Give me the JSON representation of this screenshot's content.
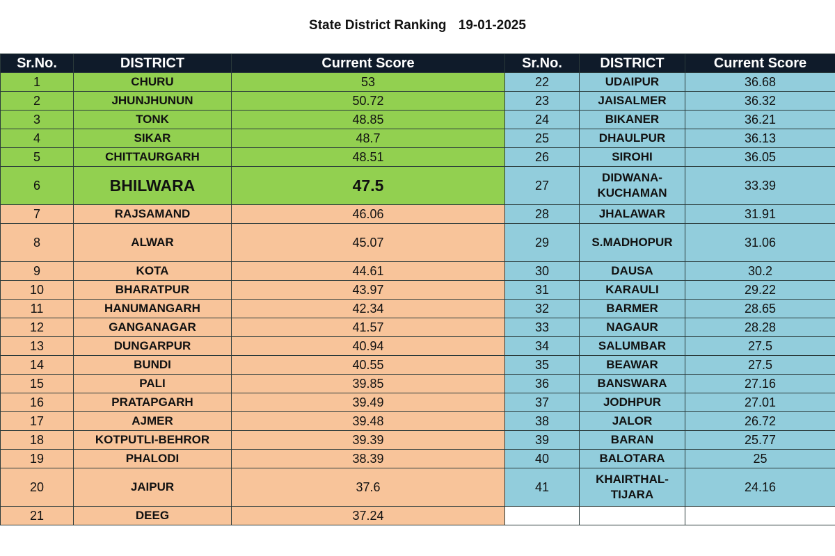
{
  "title": {
    "text": "State District Ranking",
    "date": "19-01-2025"
  },
  "headers": [
    "Sr.No.",
    "DISTRICT",
    "Current Score",
    "Sr.No.",
    "DISTRICT",
    "Current Score"
  ],
  "colors": {
    "header": "#0f1b2a",
    "top_group": "#92d050",
    "middle_group": "#f8c49a",
    "bottom_group": "#92cddc"
  },
  "left": [
    {
      "sr": "1",
      "district": "CHURU",
      "score": "53"
    },
    {
      "sr": "2",
      "district": "JHUNJHUNUN",
      "score": "50.72"
    },
    {
      "sr": "3",
      "district": "TONK",
      "score": "48.85"
    },
    {
      "sr": "4",
      "district": "SIKAR",
      "score": "48.7"
    },
    {
      "sr": "5",
      "district": "CHITTAURGARH",
      "score": "48.51"
    },
    {
      "sr": "6",
      "district": "BHILWARA",
      "score": "47.5"
    },
    {
      "sr": "7",
      "district": "RAJSAMAND",
      "score": "46.06"
    },
    {
      "sr": "8",
      "district": "ALWAR",
      "score": "45.07"
    },
    {
      "sr": "9",
      "district": "KOTA",
      "score": "44.61"
    },
    {
      "sr": "10",
      "district": "BHARATPUR",
      "score": "43.97"
    },
    {
      "sr": "11",
      "district": "HANUMANGARH",
      "score": "42.34"
    },
    {
      "sr": "12",
      "district": "GANGANAGAR",
      "score": "41.57"
    },
    {
      "sr": "13",
      "district": "DUNGARPUR",
      "score": "40.94"
    },
    {
      "sr": "14",
      "district": "BUNDI",
      "score": "40.55"
    },
    {
      "sr": "15",
      "district": "PALI",
      "score": "39.85"
    },
    {
      "sr": "16",
      "district": "PRATAPGARH",
      "score": "39.49"
    },
    {
      "sr": "17",
      "district": "AJMER",
      "score": "39.48"
    },
    {
      "sr": "18",
      "district": "KOTPUTLI-BEHROR",
      "score": "39.39"
    },
    {
      "sr": "19",
      "district": "PHALODI",
      "score": "38.39"
    },
    {
      "sr": "20",
      "district": "JAIPUR",
      "score": "37.6"
    },
    {
      "sr": "21",
      "district": "DEEG",
      "score": "37.24"
    }
  ],
  "right": [
    {
      "sr": "22",
      "district": "UDAIPUR",
      "score": "36.68"
    },
    {
      "sr": "23",
      "district": "JAISALMER",
      "score": "36.32"
    },
    {
      "sr": "24",
      "district": "BIKANER",
      "score": "36.21"
    },
    {
      "sr": "25",
      "district": "DHAULPUR",
      "score": "36.13"
    },
    {
      "sr": "26",
      "district": "SIROHI",
      "score": "36.05"
    },
    {
      "sr": "27",
      "district": "DIDWANA-KUCHAMAN",
      "score": "33.39"
    },
    {
      "sr": "28",
      "district": "JHALAWAR",
      "score": "31.91"
    },
    {
      "sr": "29",
      "district": "S.MADHOPUR",
      "score": "31.06"
    },
    {
      "sr": "30",
      "district": "DAUSA",
      "score": "30.2"
    },
    {
      "sr": "31",
      "district": "KARAULI",
      "score": "29.22"
    },
    {
      "sr": "32",
      "district": "BARMER",
      "score": "28.65"
    },
    {
      "sr": "33",
      "district": "NAGAUR",
      "score": "28.28"
    },
    {
      "sr": "34",
      "district": "SALUMBAR",
      "score": "27.5"
    },
    {
      "sr": "35",
      "district": "BEAWAR",
      "score": "27.5"
    },
    {
      "sr": "36",
      "district": "BANSWARA",
      "score": "27.16"
    },
    {
      "sr": "37",
      "district": "JODHPUR",
      "score": "27.01"
    },
    {
      "sr": "38",
      "district": "JALOR",
      "score": "26.72"
    },
    {
      "sr": "39",
      "district": "BARAN",
      "score": "25.77"
    },
    {
      "sr": "40",
      "district": "BALOTARA",
      "score": "25"
    },
    {
      "sr": "41",
      "district": "KHAIRTHAL-TIJARA",
      "score": "24.16"
    }
  ]
}
